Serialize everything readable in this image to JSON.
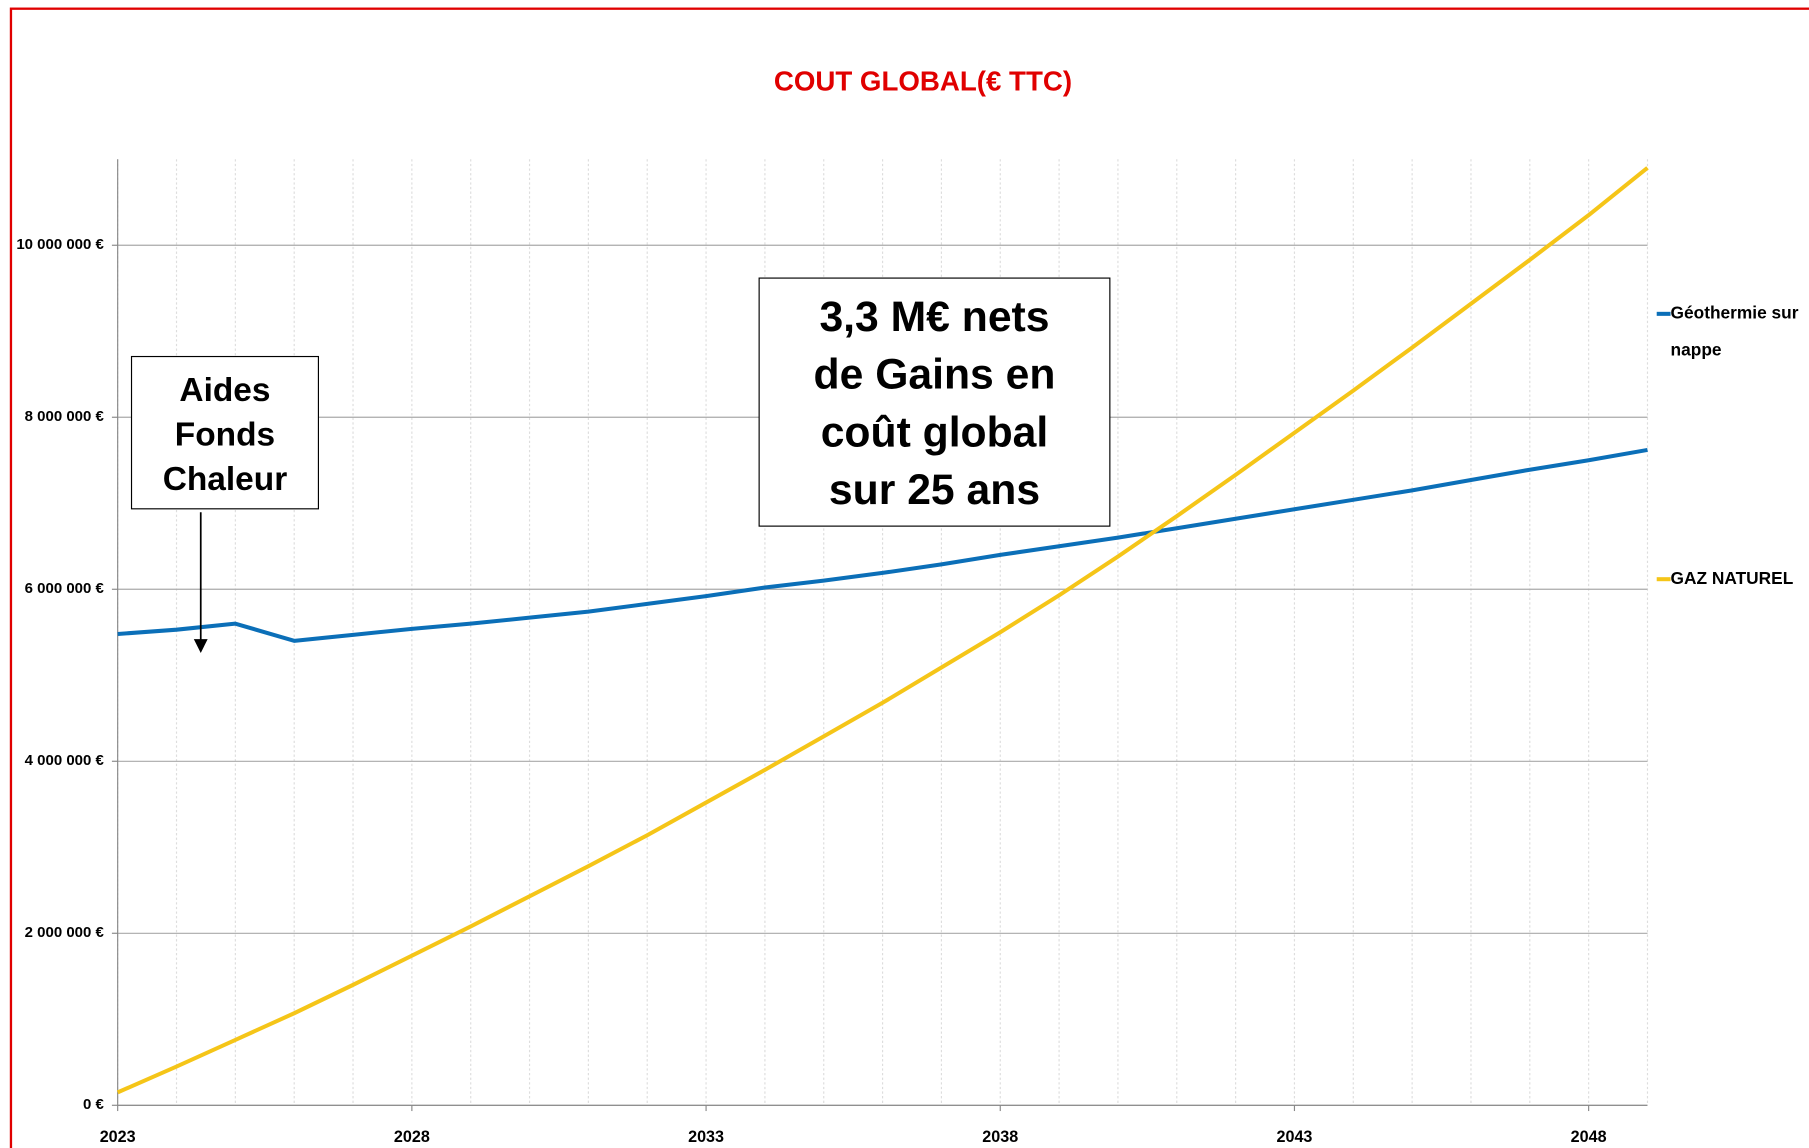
{
  "chart_data": {
    "type": "line",
    "title": "COUT GLOBAL(€ TTC)",
    "x": [
      2023,
      2024,
      2025,
      2026,
      2027,
      2028,
      2029,
      2030,
      2031,
      2032,
      2033,
      2034,
      2035,
      2036,
      2037,
      2038,
      2039,
      2040,
      2041,
      2042,
      2043,
      2044,
      2045,
      2046,
      2047,
      2048,
      2049
    ],
    "series": [
      {
        "name": "Géothermie sur nappe",
        "color": "#0b6fb8",
        "values": [
          5480000,
          5530000,
          5600000,
          5400000,
          5470000,
          5540000,
          5600000,
          5670000,
          5740000,
          5830000,
          5920000,
          6020000,
          6100000,
          6190000,
          6290000,
          6400000,
          6500000,
          6600000,
          6710000,
          6820000,
          6930000,
          7040000,
          7150000,
          7270000,
          7390000,
          7500000,
          7620000
        ]
      },
      {
        "name": "GAZ NATUREL",
        "color": "#f5c518",
        "values": [
          150000,
          450000,
          760000,
          1070000,
          1400000,
          1740000,
          2080000,
          2430000,
          2780000,
          3140000,
          3520000,
          3900000,
          4290000,
          4680000,
          5090000,
          5500000,
          5930000,
          6380000,
          6850000,
          7330000,
          7820000,
          8310000,
          8810000,
          9320000,
          9830000,
          10350000,
          10900000
        ]
      }
    ],
    "xlim": [
      2023,
      2049
    ],
    "xticks": [
      2023,
      2028,
      2033,
      2038,
      2043,
      2048
    ],
    "ylim": [
      0,
      11000000
    ],
    "yticks": [
      {
        "value": 0,
        "label": "0 €"
      },
      {
        "value": 2000000,
        "label": "2 000 000 €"
      },
      {
        "value": 4000000,
        "label": "4 000 000 €"
      },
      {
        "value": 6000000,
        "label": "6 000 000 €"
      },
      {
        "value": 8000000,
        "label": "8 000 000 €"
      },
      {
        "value": 10000000,
        "label": "10 000 000 €"
      }
    ],
    "grid": true,
    "legend": "right",
    "annotations": [
      {
        "lines": [
          "Aides",
          "Fonds",
          "Chaleur"
        ]
      },
      {
        "lines": [
          "3,3 M€ nets",
          "de Gains en",
          "coût global",
          "sur 25 ans"
        ]
      }
    ]
  }
}
